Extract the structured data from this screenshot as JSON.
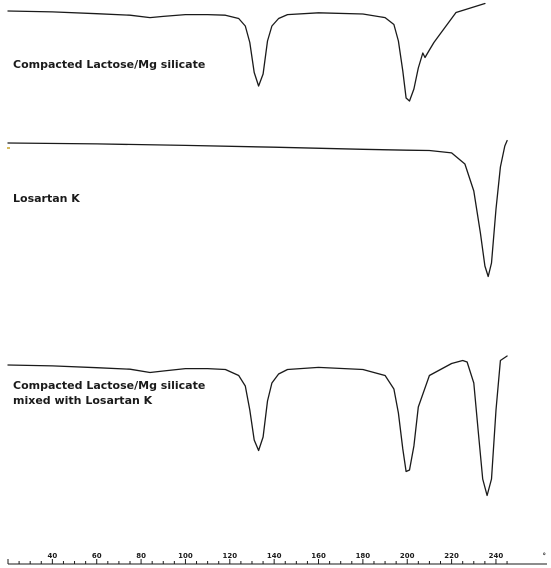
{
  "chart_data": {
    "type": "line",
    "title": "",
    "xlabel": "",
    "ylabel": "",
    "xlim": [
      20,
      245
    ],
    "x_ticks": [
      40,
      60,
      80,
      100,
      120,
      140,
      160,
      180,
      200,
      220,
      240
    ],
    "x_unit": "°",
    "grid": false,
    "legend": "none",
    "series": [
      {
        "name": "Compacted Lactose/Mg silicate",
        "x": [
          20,
          40,
          60,
          75,
          84,
          90,
          100,
          110,
          118,
          124,
          127,
          129,
          131,
          133,
          135,
          137,
          139,
          142,
          146,
          160,
          180,
          190,
          194,
          196,
          198,
          199.5,
          201,
          203,
          205,
          207,
          208,
          210,
          212,
          215,
          222,
          235
        ],
        "y": [
          0.0,
          -0.3,
          -0.9,
          -1.4,
          -2.2,
          -1.8,
          -1.2,
          -1.2,
          -1.4,
          -2.5,
          -5.0,
          -10.5,
          -20.5,
          -25.0,
          -21.0,
          -10.0,
          -5.0,
          -2.5,
          -1.2,
          -0.6,
          -1.0,
          -2.2,
          -4.5,
          -10.0,
          -20.0,
          -29.0,
          -30.0,
          -26.0,
          -19.0,
          -14.0,
          -15.5,
          -13.0,
          -10.5,
          -7.5,
          -0.5,
          2.5
        ]
      },
      {
        "name": "Losartan K",
        "x": [
          20,
          60,
          100,
          140,
          180,
          200,
          210,
          220,
          226,
          230,
          233,
          235,
          236.5,
          238,
          240,
          242,
          244,
          245
        ],
        "y": [
          0.0,
          -0.3,
          -0.8,
          -1.4,
          -2.1,
          -2.4,
          -2.5,
          -3.3,
          -7.0,
          -16.0,
          -30.0,
          -41.0,
          -44.5,
          -40.0,
          -22.0,
          -8.0,
          -1.0,
          0.8
        ]
      },
      {
        "name": "Compacted Lactose/Mg silicate mixed with Losartan K",
        "x": [
          20,
          40,
          60,
          75,
          84,
          90,
          100,
          110,
          118,
          124,
          127,
          129,
          131,
          133,
          135,
          137,
          139,
          142,
          146,
          160,
          180,
          190,
          194,
          196,
          198,
          199.5,
          201,
          203,
          205,
          210,
          220,
          225,
          227,
          230,
          232,
          234,
          236,
          238,
          240,
          242,
          245
        ],
        "y": [
          0.0,
          -0.3,
          -0.9,
          -1.4,
          -2.5,
          -2.0,
          -1.2,
          -1.2,
          -1.5,
          -3.5,
          -7.0,
          -15.0,
          -25.0,
          -28.5,
          -24.0,
          -12.0,
          -6.0,
          -3.0,
          -1.5,
          -0.8,
          -1.5,
          -3.5,
          -8.0,
          -16.0,
          -28.0,
          -35.5,
          -35.0,
          -27.0,
          -14.0,
          -3.5,
          0.5,
          1.5,
          1.0,
          -6.0,
          -22.0,
          -38.0,
          -43.5,
          -38.0,
          -15.0,
          1.5,
          3.0
        ]
      }
    ],
    "annotations": [
      {
        "text": "Compacted Lactose/Mg silicate",
        "series": 0
      },
      {
        "text": "Losartan K",
        "series": 1
      },
      {
        "text": "Compacted Lactose/Mg silicate\nmixed with Losartan K",
        "series": 2
      }
    ]
  }
}
